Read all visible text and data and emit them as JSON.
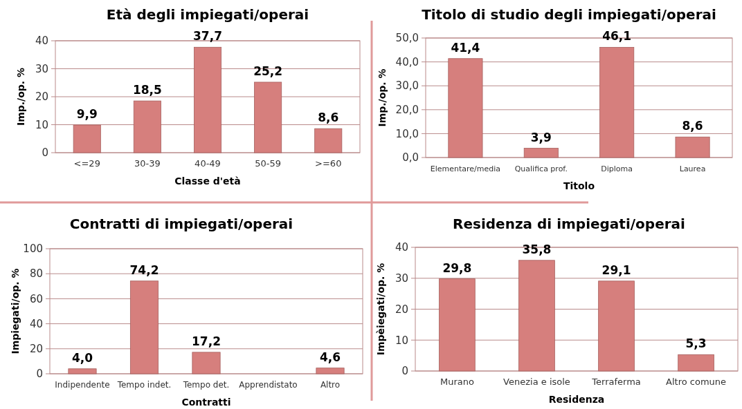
{
  "chart_data": [
    {
      "type": "bar",
      "title": "Età degli impiegati/operai",
      "xlabel": "Classe d'età",
      "ylabel": "Imp./op. %",
      "categories": [
        "<=29",
        "30-39",
        "40-49",
        "50-59",
        ">=60"
      ],
      "values": [
        9.9,
        18.5,
        37.7,
        25.2,
        8.6
      ],
      "value_labels": [
        "9,9",
        "18,5",
        "37,7",
        "25,2",
        "8,6"
      ],
      "color": "#d67f7d",
      "ylim": [
        0,
        40
      ],
      "yticks": [
        0,
        10,
        20,
        30,
        40
      ],
      "grid": "y"
    },
    {
      "type": "bar",
      "title": "Titolo di studio degli impiegati/operai",
      "xlabel": "Titolo",
      "ylabel": "Imp./op. %",
      "categories": [
        "Elementare/media",
        "Qualifica prof.",
        "Diploma",
        "Laurea"
      ],
      "values": [
        41.4,
        3.9,
        46.1,
        8.6
      ],
      "value_labels": [
        "41,4",
        "3,9",
        "46,1",
        "8,6"
      ],
      "color": "#d67f7d",
      "ylim": [
        0,
        50
      ],
      "yticks": [
        {
          "value": 0,
          "label": "0,0"
        },
        {
          "value": 10,
          "label": "10,0"
        },
        {
          "value": 20,
          "label": "20,0"
        },
        {
          "value": 30,
          "label": "30,0"
        },
        {
          "value": 40,
          "label": "40,0"
        },
        {
          "value": 50,
          "label": "50,0"
        }
      ],
      "grid": "y"
    },
    {
      "type": "bar",
      "title": "Contratti di impiegati/operai",
      "xlabel": "Contratti",
      "ylabel": "Impiegati/op. %",
      "categories": [
        "Indipendente",
        "Tempo indet.",
        "Tempo det.",
        "Apprendistato",
        "Altro"
      ],
      "values": [
        4.0,
        74.2,
        17.2,
        null,
        4.6
      ],
      "value_labels": [
        "4,0",
        "74,2",
        "17,2",
        null,
        "4,6"
      ],
      "color": "#d67f7d",
      "ylim": [
        0,
        100
      ],
      "yticks": [
        0,
        20,
        40,
        60,
        80,
        100
      ],
      "grid": "y"
    },
    {
      "type": "bar",
      "title": "Residenza di impiegati/operai",
      "xlabel": "Residenza",
      "ylabel": "Impèiegati/op. %",
      "categories": [
        "Murano",
        "Venezia e isole",
        "Terraferma",
        "Altro comune"
      ],
      "values": [
        29.8,
        35.8,
        29.1,
        5.3
      ],
      "value_labels": [
        "29,8",
        "35,8",
        "29,1",
        "5,3"
      ],
      "color": "#d67f7d",
      "ylim": [
        0,
        40
      ],
      "yticks": [
        0,
        10,
        20,
        30,
        40
      ],
      "grid": "y"
    }
  ]
}
